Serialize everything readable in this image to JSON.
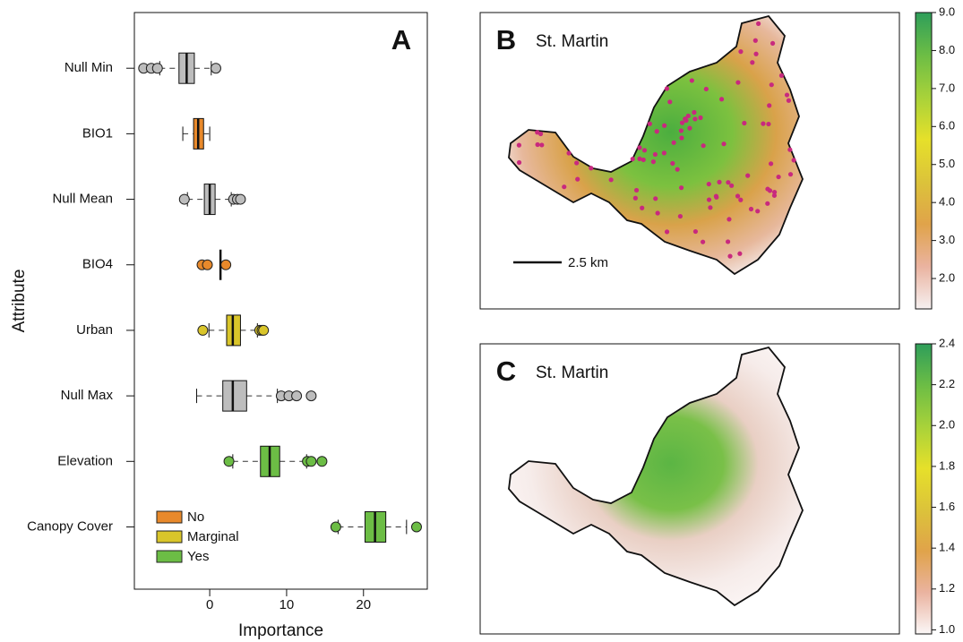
{
  "chart_data": [
    {
      "type": "boxplot",
      "panel_label": "A",
      "xlabel": "Importance",
      "ylabel": "Attribute",
      "xlim": [
        -9.8,
        28.3
      ],
      "xticks": [
        0,
        10,
        20
      ],
      "categories": [
        "Null Min",
        "BIO1",
        "Null Mean",
        "BIO4",
        "Urban",
        "Null Max",
        "Elevation",
        "Canopy Cover"
      ],
      "boxes": [
        {
          "whislo": -6.5,
          "q1": -4.0,
          "med": -3.0,
          "q3": -2.0,
          "whishi": 0.2,
          "fliers": [
            -8.6,
            -7.6,
            -6.8,
            0.8
          ],
          "color": "#bdbdbd"
        },
        {
          "whislo": -3.5,
          "q1": -2.1,
          "med": -1.5,
          "q3": -0.8,
          "whishi": 0.0,
          "fliers": [],
          "color": "#e8892b"
        },
        {
          "whislo": -2.9,
          "q1": -0.7,
          "med": 0.0,
          "q3": 0.7,
          "whishi": 2.8,
          "fliers": [
            -3.3,
            3.1,
            3.6,
            4.0
          ],
          "color": "#bdbdbd"
        },
        {
          "whislo": 1.4,
          "q1": 1.4,
          "med": 1.4,
          "q3": 1.4,
          "whishi": 1.4,
          "fliers": [
            -1.0,
            -0.3,
            2.1
          ],
          "color": "#e8892b"
        },
        {
          "whislo": -0.1,
          "q1": 2.2,
          "med": 3.0,
          "q3": 4.0,
          "whishi": 6.2,
          "fliers": [
            -0.9,
            6.5,
            6.8,
            7.0
          ],
          "color": "#d9c52a"
        },
        {
          "whislo": -1.7,
          "q1": 1.7,
          "med": 3.0,
          "q3": 4.8,
          "whishi": 8.8,
          "fliers": [
            9.3,
            10.3,
            11.3,
            13.2
          ],
          "color": "#bdbdbd"
        },
        {
          "whislo": 3.0,
          "q1": 6.6,
          "med": 7.8,
          "q3": 9.1,
          "whishi": 12.6,
          "fliers": [
            2.5,
            12.7,
            13.2,
            14.6
          ],
          "color": "#6cbd45"
        },
        {
          "whislo": 16.7,
          "q1": 20.2,
          "med": 21.5,
          "q3": 22.9,
          "whishi": 25.6,
          "fliers": [
            16.4,
            26.9
          ],
          "color": "#6cbd45"
        }
      ],
      "legend": [
        {
          "name": "No",
          "color": "#e8892b"
        },
        {
          "name": "Marginal",
          "color": "#d9c52a"
        },
        {
          "name": "Yes",
          "color": "#6cbd45"
        }
      ],
      "legend_position": "lower left"
    },
    {
      "type": "map",
      "panel_label": "B",
      "title": "St. Martin",
      "scale_bar": "2.5 km",
      "points": true,
      "colorbar": {
        "lim": [
          1.2,
          9.0
        ],
        "colormap": [
          "#f6f0f0",
          "#eab3a0",
          "#e0a34a",
          "#dcc33a",
          "#e6e02a",
          "#a8d23a",
          "#6cbd45",
          "#2e9e5a"
        ],
        "ticks": [
          {
            "value": 2,
            "label": "2.0"
          },
          {
            "value": 3,
            "label": "3.0"
          },
          {
            "value": 4,
            "label": "4.0"
          },
          {
            "value": 5,
            "label": "5.0"
          },
          {
            "value": 6,
            "label": "6.0"
          },
          {
            "value": 7,
            "label": "7.0"
          },
          {
            "value": 8,
            "label": "8.0"
          },
          {
            "value": 9,
            "label": "9.0"
          }
        ]
      }
    },
    {
      "type": "map",
      "panel_label": "C",
      "title": "St. Martin",
      "points": false,
      "colorbar": {
        "lim": [
          0.98,
          2.4
        ],
        "colormap": [
          "#fbf7f7",
          "#eab3a0",
          "#e0a34a",
          "#dcc33a",
          "#e6e02a",
          "#a8d23a",
          "#6cbd45",
          "#2e9e5a"
        ],
        "ticks": [
          {
            "value": 1.0,
            "label": "1.0"
          },
          {
            "value": 1.2,
            "label": "1.2"
          },
          {
            "value": 1.4,
            "label": "1.4"
          },
          {
            "value": 1.6,
            "label": "1.6"
          },
          {
            "value": 1.8,
            "label": "1.8"
          },
          {
            "value": 2.0,
            "label": "2.0"
          },
          {
            "value": 2.2,
            "label": "2.2"
          },
          {
            "value": 2.4,
            "label": "2.4"
          }
        ]
      }
    }
  ]
}
